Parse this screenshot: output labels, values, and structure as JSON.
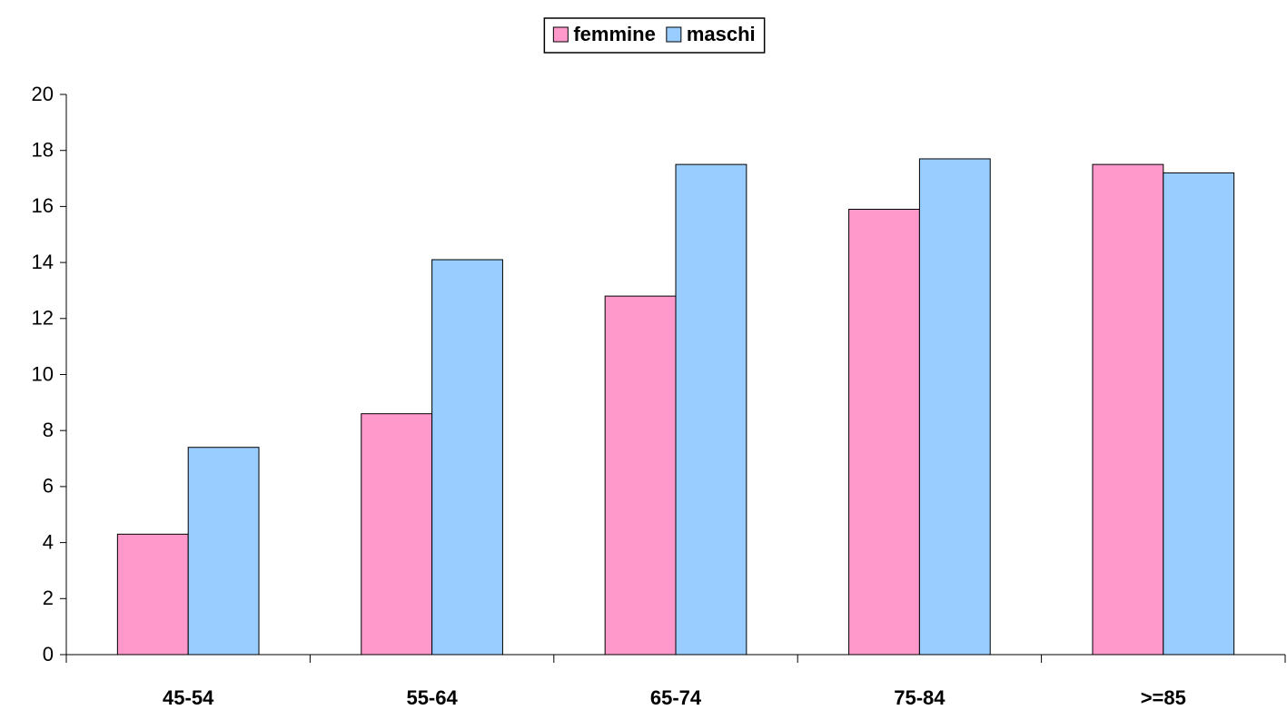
{
  "chart_data": {
    "type": "bar",
    "categories": [
      "45-54",
      "55-64",
      "65-74",
      "75-84",
      ">=85"
    ],
    "series": [
      {
        "name": "femmine",
        "color": "#ff99cc",
        "values": [
          4.3,
          8.6,
          12.8,
          15.9,
          17.5
        ]
      },
      {
        "name": "maschi",
        "color": "#99ccff",
        "values": [
          7.4,
          14.1,
          17.5,
          17.7,
          17.2
        ]
      }
    ],
    "ylim": [
      0,
      20
    ],
    "yticks": [
      0,
      2,
      4,
      6,
      8,
      10,
      12,
      14,
      16,
      18,
      20
    ],
    "grid": false,
    "legend": "top"
  }
}
